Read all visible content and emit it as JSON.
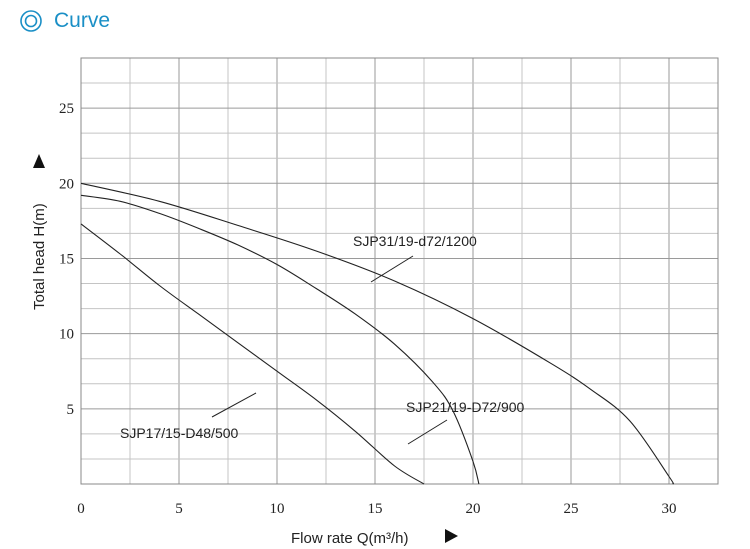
{
  "header": {
    "title": "Curve",
    "icon": "double-circle-icon",
    "color": "#1a8fc6"
  },
  "chart_data": {
    "type": "line",
    "xlabel": "Flow rate Q(m³/h)",
    "ylabel": "Total head H(m)",
    "xlim": [
      0,
      32.5
    ],
    "ylim": [
      0,
      28.333
    ],
    "xticks": [
      0,
      5,
      10,
      15,
      20,
      25,
      30
    ],
    "yticks": [
      5,
      10,
      15,
      20,
      25
    ],
    "grid": true,
    "series": [
      {
        "name": "SJP31/19-d72/1200",
        "x": [
          0,
          4,
          8,
          12,
          16,
          20,
          24,
          26,
          28,
          30,
          30.2
        ],
        "y": [
          20,
          18.8,
          17.2,
          15.5,
          13.5,
          11,
          8,
          6.3,
          4.2,
          0.5,
          0
        ]
      },
      {
        "name": "SJP21/19-D72/900",
        "x": [
          0,
          2,
          4,
          6,
          8,
          10,
          12,
          14,
          16,
          18,
          19,
          20,
          20.3
        ],
        "y": [
          19.2,
          18.8,
          18,
          17,
          15.9,
          14.6,
          13,
          11.3,
          9.3,
          6.7,
          4.8,
          1.5,
          0
        ]
      },
      {
        "name": "SJP17/15-D48/500",
        "x": [
          0,
          2,
          4,
          6,
          8,
          10,
          12,
          14,
          16,
          17.5
        ],
        "y": [
          17.3,
          15.3,
          13.2,
          11.3,
          9.4,
          7.5,
          5.6,
          3.5,
          1.2,
          0
        ]
      }
    ]
  }
}
